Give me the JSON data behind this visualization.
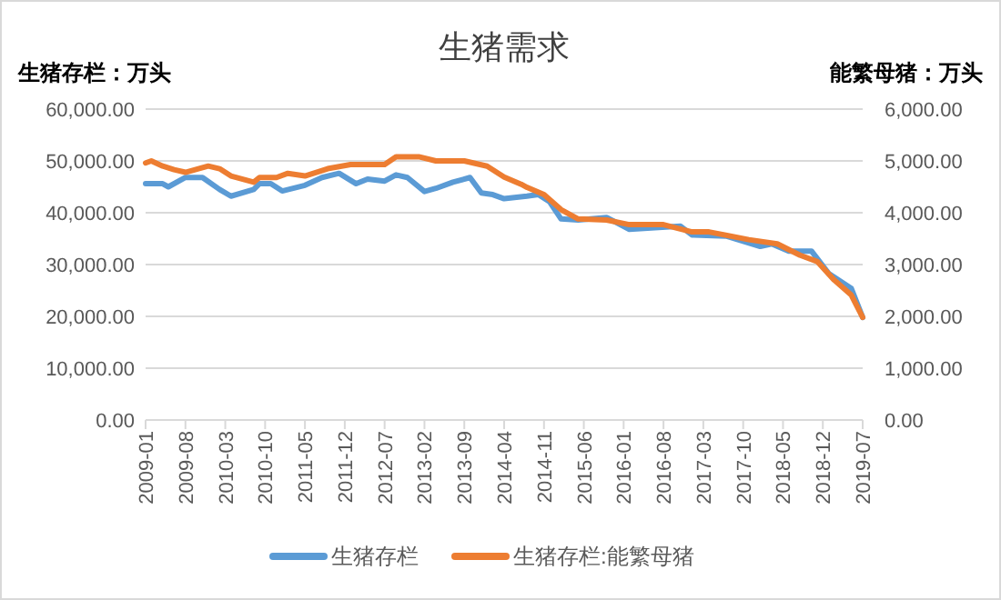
{
  "chart_data": {
    "type": "line",
    "title": "生猪需求",
    "ylabel": "生猪存栏：万头",
    "y2label": "能繁母猪：万头",
    "xlim": [
      "2009-01",
      "2019-07"
    ],
    "xticks": [
      "2009-01",
      "2009-08",
      "2010-03",
      "2010-10",
      "2011-05",
      "2011-12",
      "2012-07",
      "2013-02",
      "2013-09",
      "2014-04",
      "2014-11",
      "2015-06",
      "2016-01",
      "2016-08",
      "2017-03",
      "2017-10",
      "2018-05",
      "2018-12",
      "2019-07"
    ],
    "ylim": [
      0,
      60000
    ],
    "yticks": [
      {
        "value": 0,
        "label": "0.00"
      },
      {
        "value": 10000,
        "label": "10,000.00"
      },
      {
        "value": 20000,
        "label": "20,000.00"
      },
      {
        "value": 30000,
        "label": "30,000.00"
      },
      {
        "value": 40000,
        "label": "40,000.00"
      },
      {
        "value": 50000,
        "label": "50,000.00"
      },
      {
        "value": 60000,
        "label": "60,000.00"
      }
    ],
    "y2lim": [
      0,
      6000
    ],
    "y2ticks": [
      {
        "value": 0,
        "label": "0.00"
      },
      {
        "value": 1000,
        "label": "1,000.00"
      },
      {
        "value": 2000,
        "label": "2,000.00"
      },
      {
        "value": 3000,
        "label": "3,000.00"
      },
      {
        "value": 4000,
        "label": "4,000.00"
      },
      {
        "value": 5000,
        "label": "5,000.00"
      },
      {
        "value": 6000,
        "label": "6,000.00"
      }
    ],
    "grid": "y",
    "legend": "bottom",
    "marker": "none",
    "line_style": "solid",
    "series": [
      {
        "name": "生猪存栏",
        "color": "#5b9bd5",
        "x": [
          "2009-01",
          "2009-04",
          "2009-05",
          "2009-08",
          "2009-11",
          "2010-02",
          "2010-04",
          "2010-08",
          "2010-09",
          "2010-11",
          "2011-01",
          "2011-05",
          "2011-08",
          "2011-11",
          "2012-02",
          "2012-04",
          "2012-07",
          "2012-09",
          "2012-11",
          "2013-02",
          "2013-04",
          "2013-07",
          "2013-10",
          "2013-12",
          "2014-02",
          "2014-04",
          "2014-08",
          "2014-10",
          "2014-12",
          "2015-02",
          "2015-05",
          "2015-10",
          "2016-02",
          "2016-11",
          "2017-01",
          "2017-07",
          "2018-01",
          "2018-03",
          "2018-06",
          "2018-10",
          "2019-01",
          "2019-05",
          "2019-07"
        ],
        "values": [
          45600,
          45600,
          45000,
          46800,
          46800,
          44500,
          43200,
          44500,
          45600,
          45600,
          44200,
          45300,
          46800,
          47600,
          45600,
          46500,
          46100,
          47300,
          46800,
          44100,
          44700,
          45900,
          46800,
          43800,
          43500,
          42700,
          43200,
          43500,
          42100,
          38800,
          38600,
          39100,
          36800,
          37400,
          35700,
          35500,
          33500,
          34000,
          32600,
          32600,
          28300,
          25400,
          19800
        ]
      },
      {
        "name": "生猪存栏:能繁母猪",
        "color": "#ed7d31",
        "axis": "y2",
        "x": [
          "2009-01",
          "2009-02",
          "2009-04",
          "2009-06",
          "2009-08",
          "2009-12",
          "2010-02",
          "2010-04",
          "2010-08",
          "2010-09",
          "2010-12",
          "2011-02",
          "2011-05",
          "2011-09",
          "2012-01",
          "2012-07",
          "2012-09",
          "2013-01",
          "2013-04",
          "2013-09",
          "2014-01",
          "2014-04",
          "2014-07",
          "2014-08",
          "2014-11",
          "2015-02",
          "2015-05",
          "2015-10",
          "2016-02",
          "2016-08",
          "2017-01",
          "2017-04",
          "2017-11",
          "2018-04",
          "2018-08",
          "2018-11",
          "2019-02",
          "2019-05",
          "2019-07"
        ],
        "values": [
          4960,
          5000,
          4900,
          4830,
          4780,
          4900,
          4850,
          4710,
          4590,
          4680,
          4680,
          4760,
          4710,
          4850,
          4930,
          4930,
          5080,
          5080,
          5000,
          5000,
          4900,
          4690,
          4550,
          4490,
          4350,
          4060,
          3880,
          3860,
          3770,
          3770,
          3630,
          3630,
          3480,
          3400,
          3180,
          3060,
          2700,
          2410,
          1980
        ]
      }
    ]
  }
}
